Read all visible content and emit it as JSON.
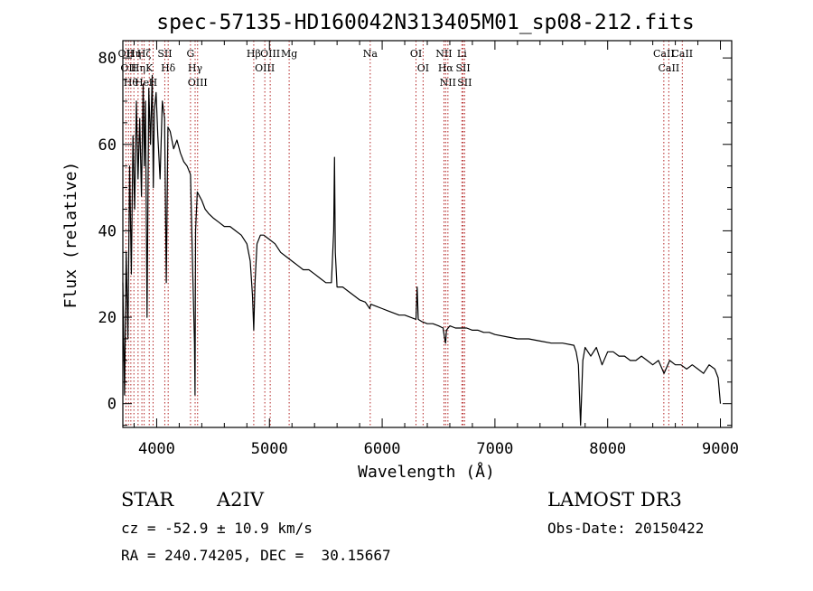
{
  "chart_data": {
    "type": "line",
    "title": "spec-57135-HD160042N313405M01_sp08-212.fits",
    "xlabel": "Wavelength (Å)",
    "ylabel": "Flux (relative)",
    "xlim": [
      3700,
      9100
    ],
    "ylim": [
      -5.5,
      84
    ],
    "xticks": [
      4000,
      5000,
      6000,
      7000,
      8000,
      9000
    ],
    "xticks_labels": [
      "4000",
      "5000",
      "6000",
      "7000",
      "8000",
      "9000"
    ],
    "yticks": [
      0,
      20,
      40,
      60,
      80
    ],
    "yticks_labels": [
      "0",
      "20",
      "40",
      "60",
      "80"
    ],
    "series": [
      {
        "name": "flux",
        "x": [
          3700,
          3715,
          3730,
          3745,
          3760,
          3775,
          3790,
          3805,
          3820,
          3835,
          3850,
          3865,
          3880,
          3890,
          3900,
          3915,
          3930,
          3945,
          3960,
          3970,
          3980,
          3995,
          4010,
          4030,
          4050,
          4070,
          4085,
          4100,
          4120,
          4150,
          4180,
          4210,
          4240,
          4270,
          4300,
          4320,
          4335,
          4340,
          4345,
          4360,
          4380,
          4400,
          4430,
          4460,
          4500,
          4550,
          4600,
          4650,
          4700,
          4750,
          4800,
          4830,
          4850,
          4861,
          4872,
          4890,
          4920,
          4950,
          5000,
          5050,
          5100,
          5150,
          5200,
          5250,
          5300,
          5350,
          5400,
          5450,
          5500,
          5550,
          5570,
          5577,
          5584,
          5600,
          5650,
          5700,
          5750,
          5800,
          5850,
          5890,
          5900,
          5950,
          6000,
          6050,
          6100,
          6150,
          6200,
          6250,
          6300,
          6310,
          6320,
          6350,
          6400,
          6450,
          6500,
          6540,
          6555,
          6563,
          6570,
          6600,
          6650,
          6700,
          6750,
          6800,
          6850,
          6900,
          6950,
          7000,
          7100,
          7200,
          7300,
          7400,
          7500,
          7600,
          7700,
          7720,
          7740,
          7760,
          7780,
          7800,
          7850,
          7900,
          7950,
          8000,
          8050,
          8100,
          8150,
          8200,
          8250,
          8300,
          8350,
          8400,
          8450,
          8500,
          8550,
          8600,
          8650,
          8700,
          8750,
          8800,
          8850,
          8900,
          8950,
          8980,
          9000
        ],
        "y": [
          28,
          2,
          35,
          15,
          55,
          30,
          62,
          45,
          70,
          52,
          66,
          48,
          74,
          55,
          70,
          20,
          73,
          60,
          76,
          50,
          68,
          72,
          62,
          52,
          70,
          66,
          28,
          64,
          63,
          59,
          61,
          58,
          56,
          55,
          53,
          30,
          14,
          2,
          40,
          49,
          48,
          47,
          45,
          44,
          43,
          42,
          41,
          41,
          40,
          39,
          37,
          33,
          25,
          17,
          28,
          37,
          39,
          39,
          38,
          37,
          35,
          34,
          33,
          32,
          31,
          31,
          30,
          29,
          28,
          28,
          40,
          57,
          35,
          27,
          27,
          26,
          25,
          24,
          23.5,
          22,
          23,
          22.5,
          22,
          21.5,
          21,
          20.5,
          20.5,
          20,
          19.5,
          27,
          19.5,
          19,
          18.5,
          18.5,
          18,
          17.5,
          15,
          14,
          17,
          18,
          17.5,
          17.5,
          17.5,
          17,
          17,
          16.5,
          16.5,
          16,
          15.5,
          15,
          15,
          14.5,
          14,
          14,
          13.5,
          12,
          9,
          -5,
          10,
          13,
          11,
          13,
          9,
          12,
          12,
          11,
          11,
          10,
          10,
          11,
          10,
          9,
          10,
          7,
          10,
          9,
          9,
          8,
          9,
          8,
          7,
          9,
          8,
          6,
          0
        ]
      }
    ],
    "lines": [
      {
        "wave": 3727,
        "label": "OII"
      },
      {
        "wave": 3750,
        "label": "OII"
      },
      {
        "wave": 3771,
        "label": "Hθ"
      },
      {
        "wave": 3798,
        "label": "Hη"
      },
      {
        "wave": 3835,
        "label": "Hη"
      },
      {
        "wave": 3869,
        "label": "He"
      },
      {
        "wave": 3889,
        "label": "Hζ"
      },
      {
        "wave": 3934,
        "label": "K"
      },
      {
        "wave": 3968,
        "label": "H"
      },
      {
        "wave": 4072,
        "label": "SII"
      },
      {
        "wave": 4102,
        "label": "Hδ"
      },
      {
        "wave": 4300,
        "label": "G"
      },
      {
        "wave": 4341,
        "label": "Hγ"
      },
      {
        "wave": 4363,
        "label": "OIII"
      },
      {
        "wave": 4861,
        "label": "Hβ"
      },
      {
        "wave": 4959,
        "label": "OIII"
      },
      {
        "wave": 5007,
        "label": "OIII"
      },
      {
        "wave": 5175,
        "label": "Mg"
      },
      {
        "wave": 5894,
        "label": "Na"
      },
      {
        "wave": 6300,
        "label": "OI"
      },
      {
        "wave": 6363,
        "label": "OI"
      },
      {
        "wave": 6548,
        "label": "NII"
      },
      {
        "wave": 6563,
        "label": "Hα"
      },
      {
        "wave": 6583,
        "label": "NII"
      },
      {
        "wave": 6707,
        "label": "Li"
      },
      {
        "wave": 6717,
        "label": "SII"
      },
      {
        "wave": 6731,
        "label": "SII"
      },
      {
        "wave": 8498,
        "label": "CaII"
      },
      {
        "wave": 8542,
        "label": "CaII"
      },
      {
        "wave": 8662,
        "label": "CaII"
      }
    ],
    "colors": {
      "spectrum": "#000000",
      "marker": "#b22222",
      "frame": "#000000"
    }
  },
  "info": {
    "object_class": "STAR",
    "subclass": "A2IV",
    "survey": "LAMOST DR3",
    "cz": "cz = -52.9 ± 10.9 km/s",
    "obs_date": "Obs-Date: 20150422",
    "coords": "RA = 240.74205, DEC =  30.15667"
  }
}
